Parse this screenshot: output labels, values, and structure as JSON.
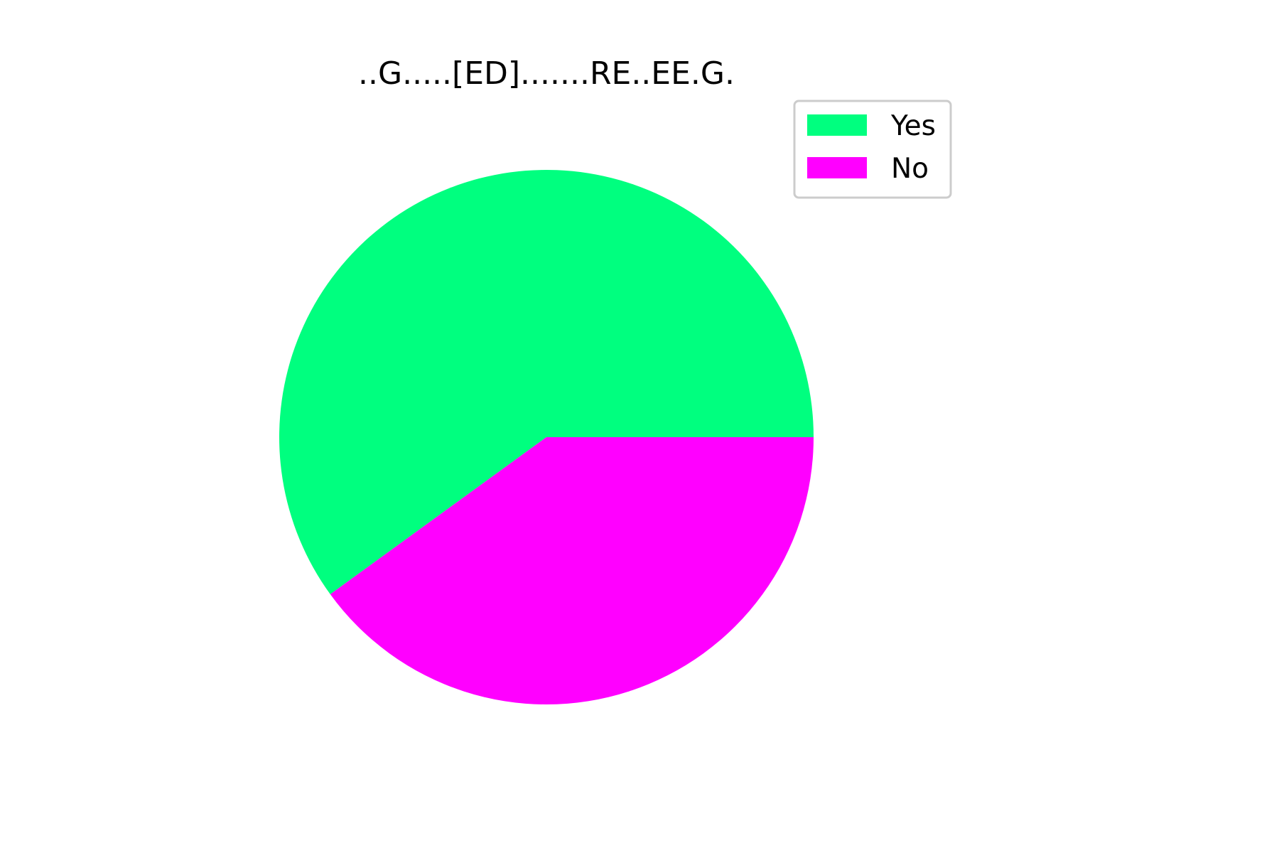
{
  "chart_data": {
    "type": "pie",
    "title": "..G.....[ED].......RE..EE.G.",
    "slices": [
      {
        "label": "Yes",
        "value": 60,
        "color": "#00ff7f"
      },
      {
        "label": "No",
        "value": 40,
        "color": "#ff00ff"
      }
    ],
    "start_angle_deg": 0,
    "direction": "counterclockwise",
    "legend": {
      "placement": "upper-right",
      "entries": [
        "Yes",
        "No"
      ]
    }
  }
}
